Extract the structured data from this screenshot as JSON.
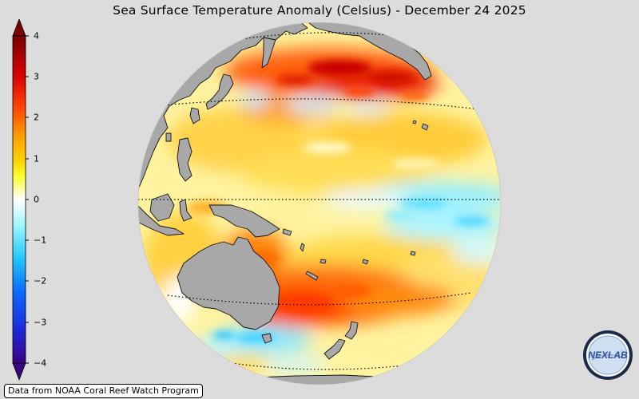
{
  "title": "Sea Surface Temperature Anomaly (Celsius) - December 24 2025",
  "colorbar": {
    "ticks": [
      "4",
      "3",
      "2",
      "1",
      "0",
      "−1",
      "−2",
      "−3",
      "−4"
    ],
    "stops": [
      "#7a0000",
      "#d40000",
      "#ff4500",
      "#ff9a00",
      "#ffd200",
      "#ffff30",
      "#ffffff",
      "#9cf5ff",
      "#22c8ff",
      "#0a6cff",
      "#1e28d8",
      "#3a0080"
    ]
  },
  "map": {
    "ocean_base": "#fff3a0",
    "land": "#a8a8a8"
  },
  "credit": "Data from NOAA Coral Reef Watch Program",
  "logo": {
    "text": "NEXLAB"
  }
}
